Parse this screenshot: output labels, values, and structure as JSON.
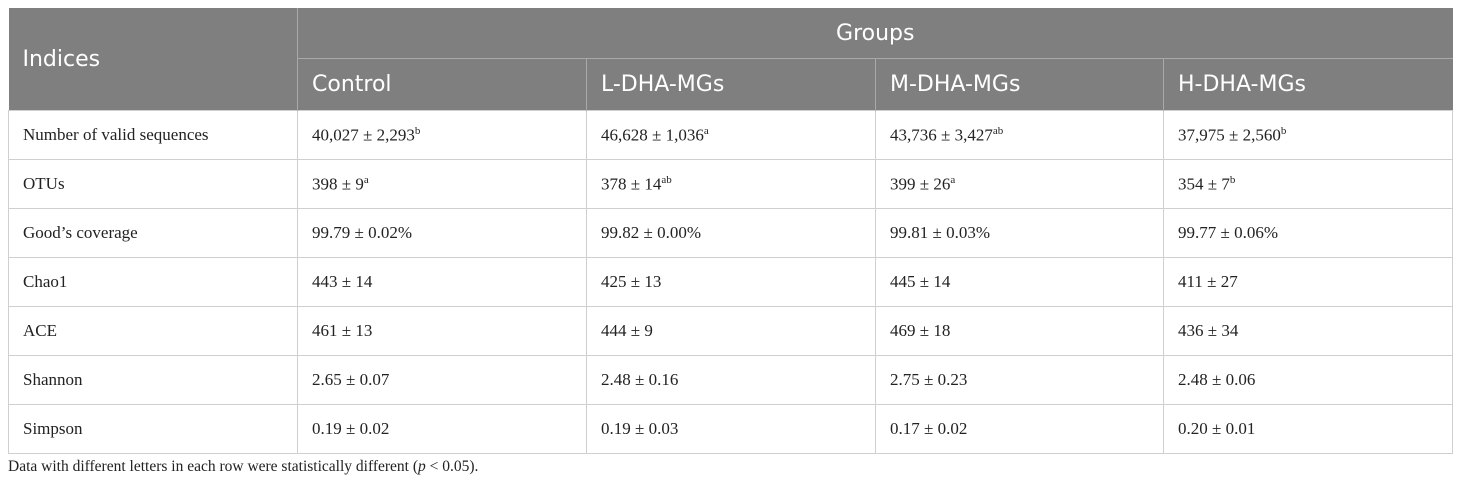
{
  "header": {
    "indices": "Indices",
    "groups": "Groups",
    "columns": [
      "Control",
      "L-DHA-MGs",
      "M-DHA-MGs",
      "H-DHA-MGs"
    ]
  },
  "rows": [
    {
      "label": "Number of valid sequences",
      "cells": [
        {
          "v": "40,027 ± 2,293",
          "s": "b"
        },
        {
          "v": "46,628 ± 1,036",
          "s": "a"
        },
        {
          "v": "43,736 ± 3,427",
          "s": "ab"
        },
        {
          "v": "37,975 ± 2,560",
          "s": "b"
        }
      ]
    },
    {
      "label": "OTUs",
      "cells": [
        {
          "v": "398 ± 9",
          "s": "a"
        },
        {
          "v": "378 ± 14",
          "s": "ab"
        },
        {
          "v": "399 ± 26",
          "s": "a"
        },
        {
          "v": "354 ± 7",
          "s": "b"
        }
      ]
    },
    {
      "label": "Good’s coverage",
      "cells": [
        {
          "v": "99.79 ± 0.02%",
          "s": ""
        },
        {
          "v": "99.82 ± 0.00%",
          "s": ""
        },
        {
          "v": "99.81 ± 0.03%",
          "s": ""
        },
        {
          "v": "99.77 ± 0.06%",
          "s": ""
        }
      ]
    },
    {
      "label": "Chao1",
      "cells": [
        {
          "v": "443 ± 14",
          "s": ""
        },
        {
          "v": "425 ± 13",
          "s": ""
        },
        {
          "v": "445 ± 14",
          "s": ""
        },
        {
          "v": "411 ± 27",
          "s": ""
        }
      ]
    },
    {
      "label": "ACE",
      "cells": [
        {
          "v": "461 ± 13",
          "s": ""
        },
        {
          "v": "444 ± 9",
          "s": ""
        },
        {
          "v": "469 ± 18",
          "s": ""
        },
        {
          "v": "436 ± 34",
          "s": ""
        }
      ]
    },
    {
      "label": "Shannon",
      "cells": [
        {
          "v": "2.65 ± 0.07",
          "s": ""
        },
        {
          "v": "2.48 ± 0.16",
          "s": ""
        },
        {
          "v": "2.75 ± 0.23",
          "s": ""
        },
        {
          "v": "2.48 ± 0.06",
          "s": ""
        }
      ]
    },
    {
      "label": "Simpson",
      "cells": [
        {
          "v": "0.19 ± 0.02",
          "s": ""
        },
        {
          "v": "0.19 ± 0.03",
          "s": ""
        },
        {
          "v": "0.17 ± 0.02",
          "s": ""
        },
        {
          "v": "0.20 ± 0.01",
          "s": ""
        }
      ]
    }
  ],
  "footnote": {
    "before": "Data with different letters in each row were statistically different (",
    "italic": "p",
    "after": " < 0.05)."
  },
  "colors": {
    "header_bg": "#7f7f7f",
    "header_text": "#ffffff",
    "grid": "#cfcfcf"
  }
}
